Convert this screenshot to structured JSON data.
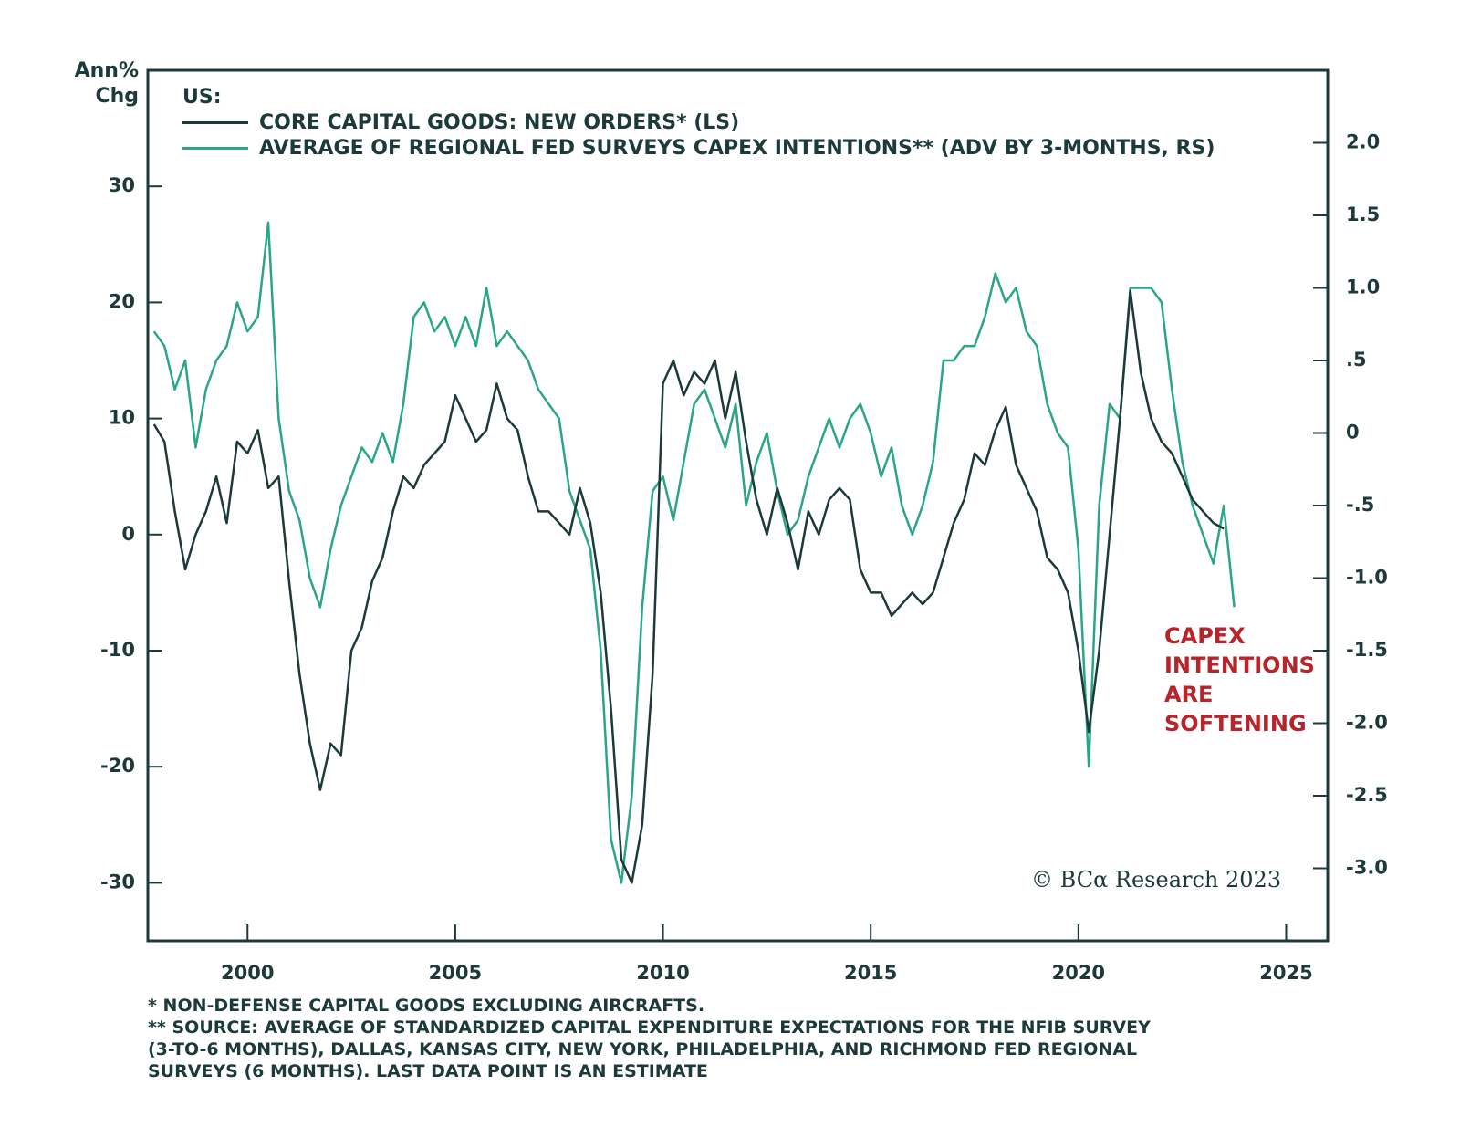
{
  "chart_data": {
    "type": "line",
    "y_label": "Ann% Chg",
    "legend_title": "US:",
    "annotation": "CAPEX INTENTIONS ARE SOFTENING",
    "watermark": "© BCα Research 2023",
    "footnotes": [
      "* NON-DEFENSE CAPITAL GOODS EXCLUDING AIRCRAFTS.",
      "** SOURCE: AVERAGE OF STANDARDIZED CAPITAL EXPENDITURE EXPECTATIONS FOR THE NFIB SURVEY (3-TO-6 MONTHS), DALLAS, KANSAS CITY, NEW YORK, PHILADELPHIA, AND RICHMOND FED REGIONAL SURVEYS (6 MONTHS). LAST DATA POINT IS AN ESTIMATE"
    ],
    "x": [
      1997.75,
      1998,
      1998.25,
      1998.5,
      1998.75,
      1999,
      1999.25,
      1999.5,
      1999.75,
      2000,
      2000.25,
      2000.5,
      2000.75,
      2001,
      2001.25,
      2001.5,
      2001.75,
      2002,
      2002.25,
      2002.5,
      2002.75,
      2003,
      2003.25,
      2003.5,
      2003.75,
      2004,
      2004.25,
      2004.5,
      2004.75,
      2005,
      2005.25,
      2005.5,
      2005.75,
      2006,
      2006.25,
      2006.5,
      2006.75,
      2007,
      2007.25,
      2007.5,
      2007.75,
      2008,
      2008.25,
      2008.5,
      2008.75,
      2009,
      2009.25,
      2009.5,
      2009.75,
      2010,
      2010.25,
      2010.5,
      2010.75,
      2011,
      2011.25,
      2011.5,
      2011.75,
      2012,
      2012.25,
      2012.5,
      2012.75,
      2013,
      2013.25,
      2013.5,
      2013.75,
      2014,
      2014.25,
      2014.5,
      2014.75,
      2015,
      2015.25,
      2015.5,
      2015.75,
      2016,
      2016.25,
      2016.5,
      2016.75,
      2017,
      2017.25,
      2017.5,
      2017.75,
      2018,
      2018.25,
      2018.5,
      2018.75,
      2019,
      2019.25,
      2019.5,
      2019.75,
      2020,
      2020.25,
      2020.5,
      2020.75,
      2021,
      2021.25,
      2021.5,
      2021.75,
      2022,
      2022.25,
      2022.5,
      2022.75,
      2023,
      2023.25,
      2023.5,
      2023.75
    ],
    "series": [
      {
        "name": "CORE CAPITAL GOODS: NEW ORDERS* (LS)",
        "color": "#1c3a3a",
        "axis": "y",
        "values": [
          9.5,
          8,
          2,
          -3,
          0,
          2,
          5,
          1,
          8,
          7,
          9,
          4,
          5,
          -4,
          -12,
          -18,
          -22,
          -18,
          -19,
          -10,
          -8,
          -4,
          -2,
          2,
          5,
          4,
          6,
          7,
          8,
          12,
          10,
          8,
          9,
          13,
          10,
          9,
          5,
          2,
          2,
          1,
          0,
          4,
          1,
          -5,
          -15,
          -28,
          -30,
          -25,
          -12,
          13,
          15,
          12,
          14,
          13,
          15,
          10,
          14,
          8,
          3,
          0,
          4,
          1,
          -3,
          2,
          0,
          3,
          4,
          3,
          -3,
          -5,
          -5,
          -7,
          -6,
          -5,
          -6,
          -5,
          -2,
          1,
          3,
          7,
          6,
          9,
          11,
          6,
          4,
          2,
          -2,
          -3,
          -5,
          -10,
          -17,
          -10,
          0,
          10,
          21,
          14,
          10,
          8,
          7,
          5,
          3,
          2,
          1,
          0.5,
          null
        ]
      },
      {
        "name": "AVERAGE OF REGIONAL FED SURVEYS CAPEX INTENTIONS** (ADV BY 3-MONTHS, RS)",
        "color": "#2aa58a",
        "axis": "y2",
        "values": [
          0.7,
          0.6,
          0.3,
          0.5,
          -0.1,
          0.3,
          0.5,
          0.6,
          0.9,
          0.7,
          0.8,
          1.45,
          0.1,
          -0.4,
          -0.6,
          -1.0,
          -1.2,
          -0.8,
          -0.5,
          -0.3,
          -0.1,
          -0.2,
          0,
          -0.2,
          0.2,
          0.8,
          0.9,
          0.7,
          0.8,
          0.6,
          0.8,
          0.6,
          1.0,
          0.6,
          0.7,
          0.6,
          0.5,
          0.3,
          0.2,
          0.1,
          -0.4,
          -0.6,
          -0.8,
          -1.5,
          -2.8,
          -3.1,
          -2.5,
          -1.2,
          -0.4,
          -0.3,
          -0.6,
          -0.2,
          0.2,
          0.3,
          0.1,
          -0.1,
          0.2,
          -0.5,
          -0.2,
          0,
          -0.4,
          -0.7,
          -0.6,
          -0.3,
          -0.1,
          0.1,
          -0.1,
          0.1,
          0.2,
          0,
          -0.3,
          -0.1,
          -0.5,
          -0.7,
          -0.5,
          -0.2,
          0.5,
          0.5,
          0.6,
          0.6,
          0.8,
          1.1,
          0.9,
          1.0,
          0.7,
          0.6,
          0.2,
          0,
          -0.1,
          -0.8,
          -2.3,
          -0.5,
          0.2,
          0.1,
          1.0,
          1.0,
          1.0,
          0.9,
          0.3,
          -0.2,
          -0.5,
          -0.7,
          -0.9,
          -0.5,
          -1.2
        ]
      }
    ],
    "xlim": [
      1997.6,
      2026
    ],
    "xticks": [
      2000,
      2005,
      2010,
      2015,
      2020,
      2025
    ],
    "ylim": [
      -35,
      40
    ],
    "yticks": [
      -30,
      -20,
      -10,
      0,
      10,
      20,
      30
    ],
    "y2lim": [
      -3.5,
      2.5
    ],
    "y2ticks": [
      {
        "value": -3,
        "label": "-3.0"
      },
      {
        "value": -2.5,
        "label": "-2.5"
      },
      {
        "value": -2,
        "label": "-2.0"
      },
      {
        "value": -1.5,
        "label": "-1.5"
      },
      {
        "value": -1,
        "label": "-1.0"
      },
      {
        "value": -0.5,
        "label": "-.5"
      },
      0,
      {
        "value": 0.5,
        "label": ".5"
      },
      {
        "value": 1,
        "label": "1.0"
      },
      {
        "value": 1.5,
        "label": "1.5"
      },
      {
        "value": 2,
        "label": "2.0"
      }
    ]
  }
}
